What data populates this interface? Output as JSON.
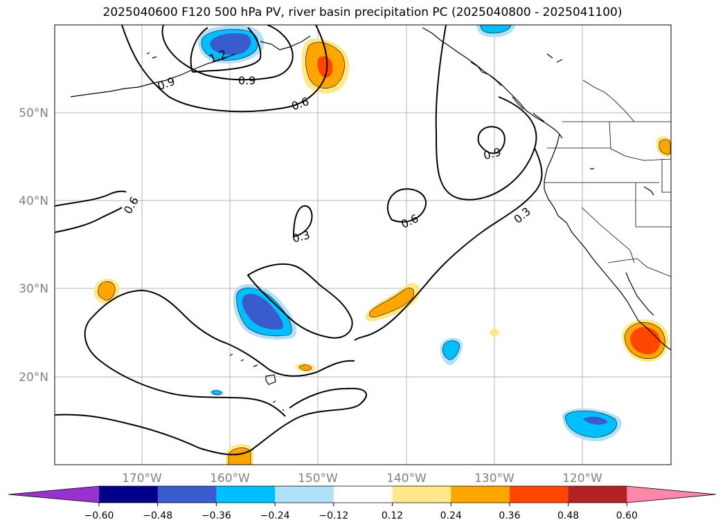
{
  "title": "2025040600 F120 500 hPa PV, river basin precipitation PC (2025040800 - 2025041100)",
  "lat_labels": [
    "50°N",
    "40°N",
    "30°N",
    "20°N"
  ],
  "lon_labels": [
    "170°W",
    "160°W",
    "150°W",
    "140°W",
    "130°W",
    "120°W"
  ],
  "contour_labels": [
    "1.2",
    "0.9",
    "0.6",
    "0.9",
    "0.6",
    "0.3",
    "0.6",
    "0.3",
    "0.9"
  ],
  "colorbar": {
    "ticks": [
      "−0.60",
      "−0.48",
      "−0.36",
      "−0.24",
      "−0.12",
      "0.12",
      "0.24",
      "0.36",
      "0.48",
      "0.60"
    ],
    "colors": [
      "#9932cc",
      "#00008b",
      "#3a5bcd",
      "#00bfff",
      "#b0e0fa",
      "#ffffff",
      "#ffe88a",
      "#ffa500",
      "#ff4500",
      "#b22222",
      "#ff88aa"
    ]
  },
  "fill_colors": {
    "neg_light": "#b0e0fa",
    "neg_mid": "#00bfff",
    "neg_dark": "#3a5bcd",
    "pos_light": "#ffe88a",
    "pos_mid": "#ffa500",
    "pos_dark": "#ff4500"
  }
}
